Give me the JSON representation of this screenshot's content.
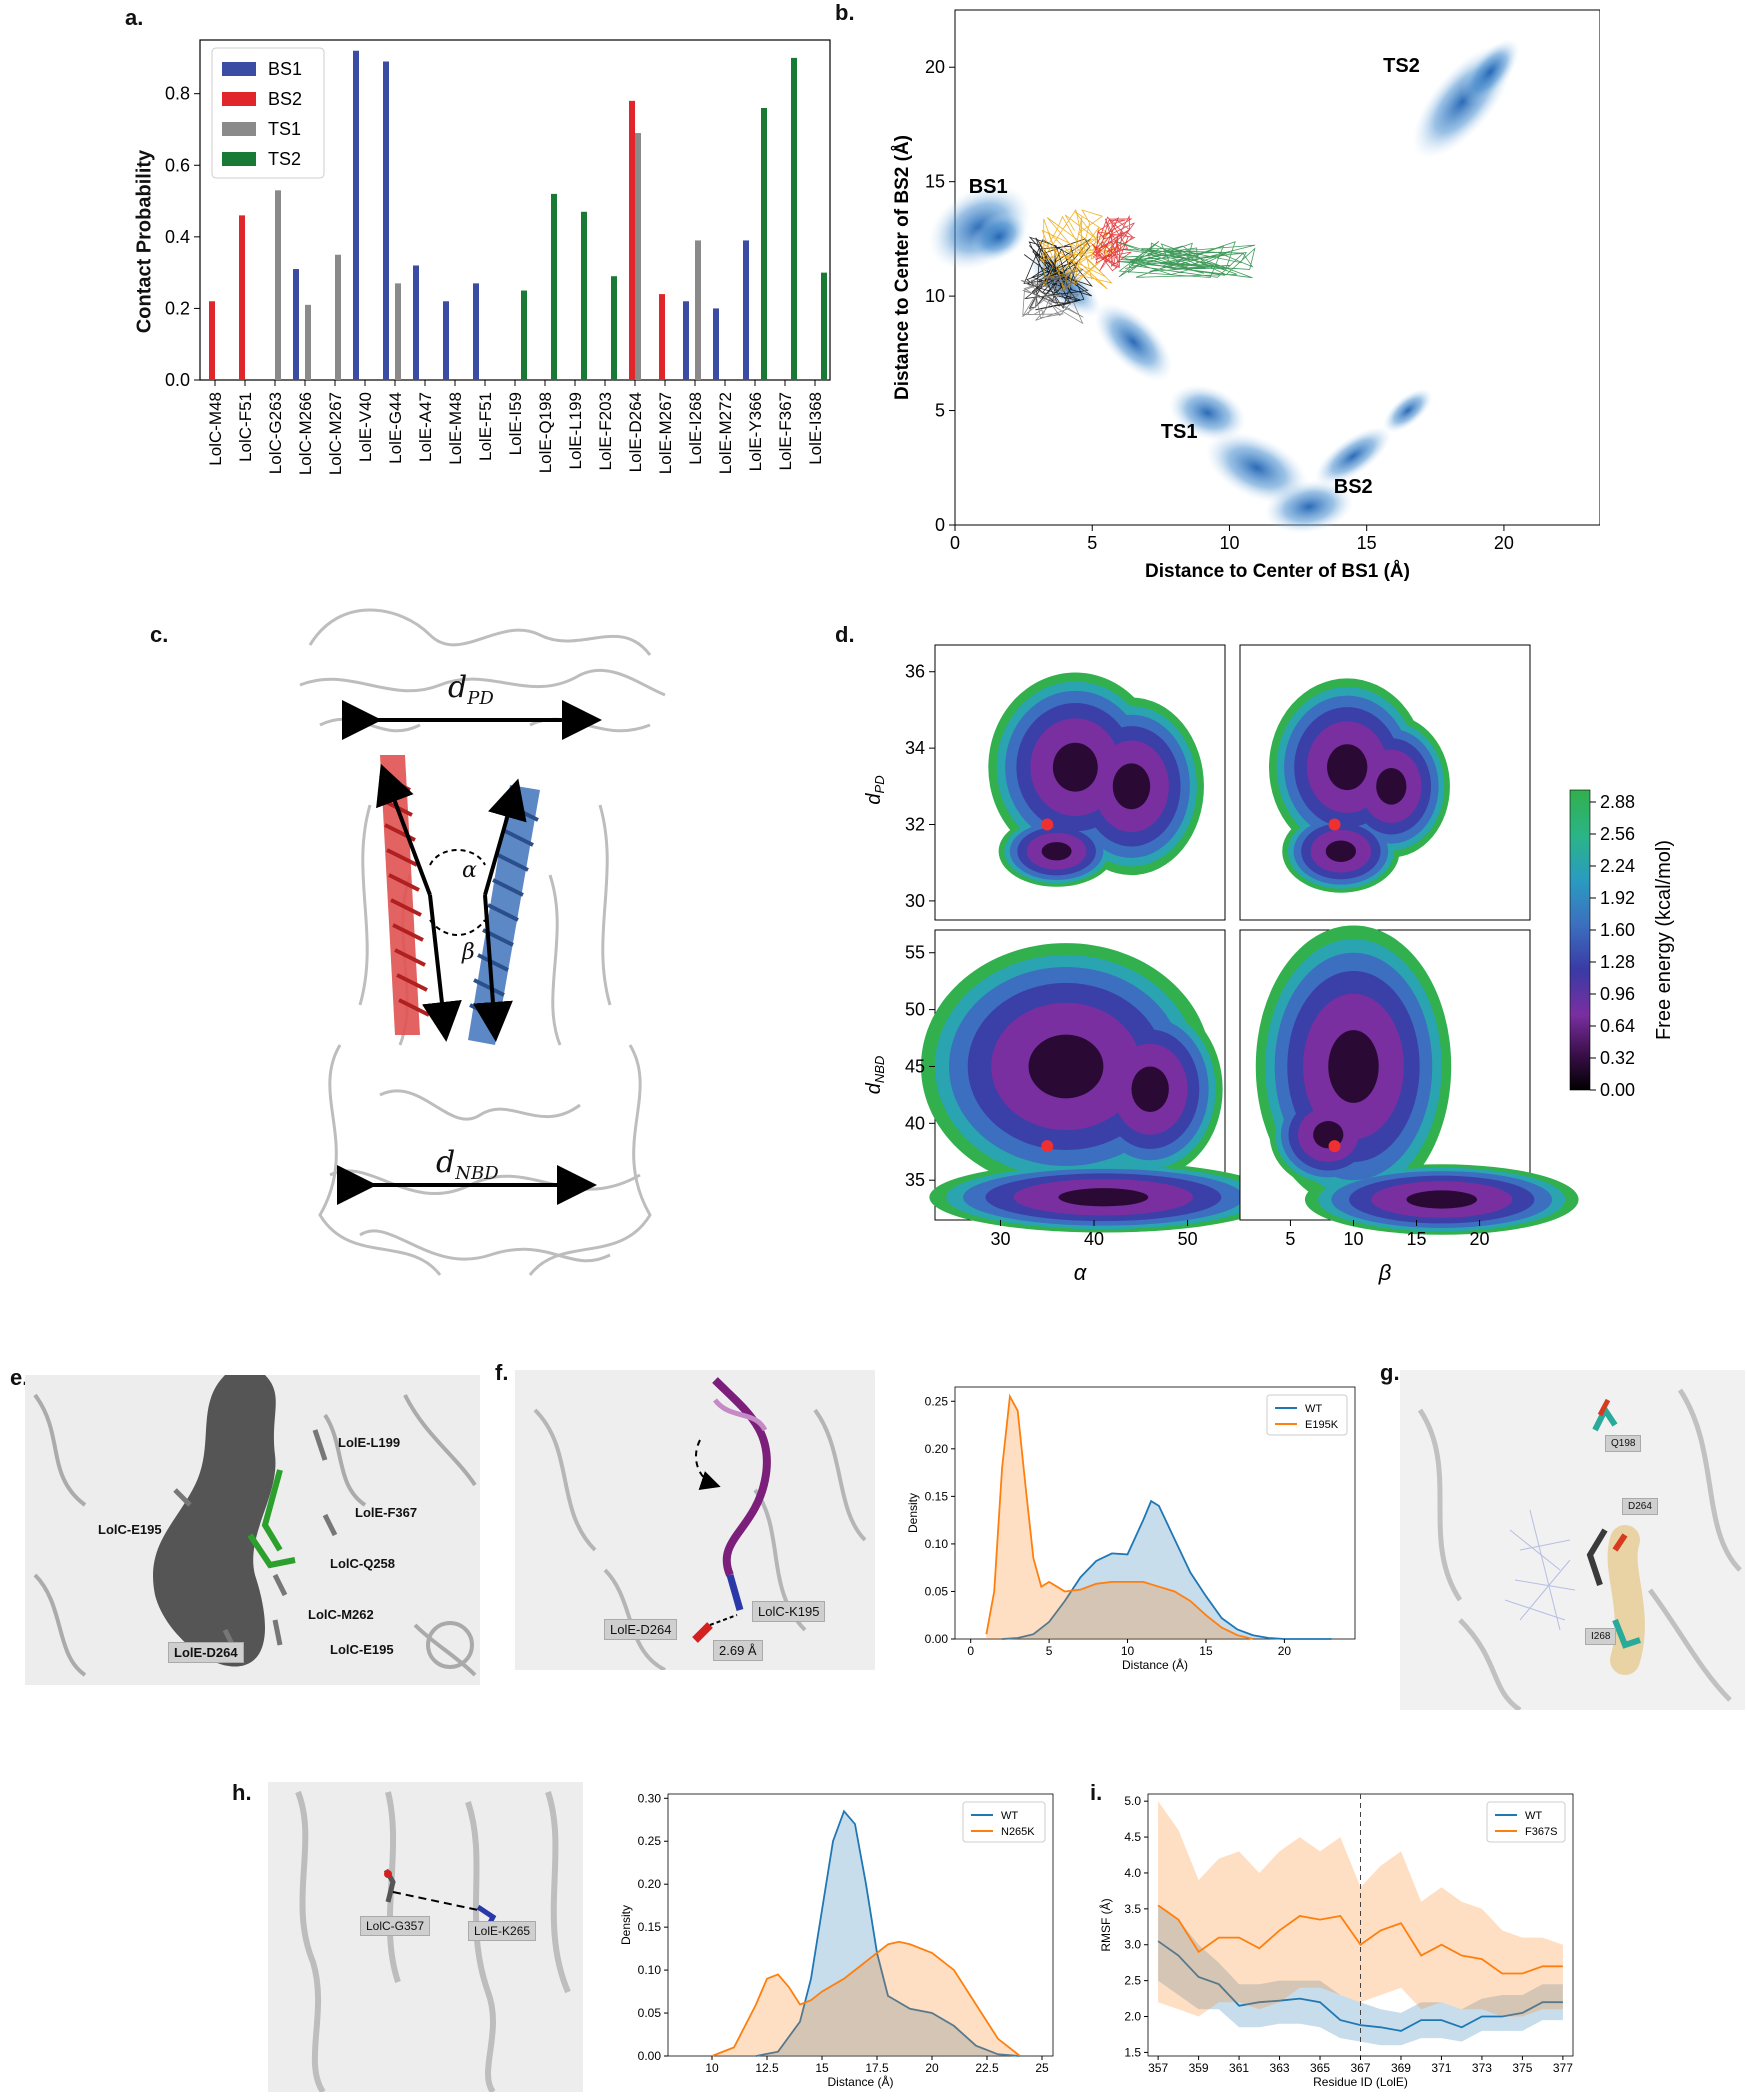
{
  "letters": {
    "a": "a.",
    "b": "b.",
    "c": "c.",
    "d": "d.",
    "e": "e.",
    "f": "f.",
    "g": "g.",
    "h": "h.",
    "i": "i."
  },
  "panel_a": {
    "ylabel": "Contact Probability",
    "legend": [
      "BS1",
      "BS2",
      "TS1",
      "TS2"
    ]
  },
  "panel_b": {
    "xlabel": "Distance to Center of BS1 (Å)",
    "ylabel": "Distance to Center of BS2 (Å)",
    "labels": {
      "BS1": "BS1",
      "TS1": "TS1",
      "TS2": "TS2",
      "BS2": "BS2"
    }
  },
  "panel_c": {
    "dPD": "d",
    "dPD_sub": "PD",
    "dNBD": "d",
    "dNBD_sub": "NBD",
    "alpha": "α",
    "beta": "β"
  },
  "panel_d": {
    "ylabel_top": "d",
    "ylabel_top_sub": "PD",
    "ylabel_bottom": "d",
    "ylabel_bottom_sub": "NBD",
    "xlabel_left": "α",
    "xlabel_right": "β",
    "colorbar_label": "Free energy (kcal/mol)",
    "colorbar_ticks": [
      "2.88",
      "2.56",
      "2.24",
      "1.92",
      "1.60",
      "1.28",
      "0.96",
      "0.64",
      "0.32",
      "0.00"
    ],
    "yt_top": [
      "36",
      "34",
      "32",
      "30"
    ],
    "yt_bottom": [
      "55",
      "50",
      "45",
      "40",
      "35"
    ],
    "xt_left": [
      "30",
      "40",
      "50"
    ],
    "xt_right": [
      "5",
      "10",
      "15",
      "20"
    ]
  },
  "panel_e": {
    "labels": [
      "LolE-L199",
      "LolE-F367",
      "LolC-E195",
      "LolC-Q258",
      "LolC-M262",
      "LolE-D264",
      "LolC-E195"
    ]
  },
  "panel_f": {
    "labels": {
      "d264": "LolE-D264",
      "k195": "LolC-K195",
      "dist": "2.69 Å"
    }
  },
  "panel_g": {
    "labels": {
      "q198": "Q198",
      "d264": "D264",
      "i268": "I268"
    }
  },
  "panel_h": {
    "labels": {
      "g357": "LolC-G357",
      "k265": "LolE-K265"
    }
  },
  "chart_data": [
    {
      "id": "a",
      "type": "bar",
      "ylabel": "Contact Probability",
      "ylim": [
        0,
        0.95
      ],
      "categories": [
        "LolC-M48",
        "LolC-F51",
        "LolC-G263",
        "LolC-M266",
        "LolC-M267",
        "LolE-V40",
        "LolE-G44",
        "LolE-A47",
        "LolE-M48",
        "LolE-F51",
        "LolE-I59",
        "LolE-Q198",
        "LolE-L199",
        "LolE-F203",
        "LolE-D264",
        "LolE-M267",
        "LolE-I268",
        "LolE-M272",
        "LolE-Y366",
        "LolE-F367",
        "LolE-I368"
      ],
      "series": [
        {
          "name": "BS1",
          "color": "#3b4ca5",
          "values": [
            0,
            0,
            0,
            0.31,
            0,
            0.92,
            0.89,
            0.32,
            0.22,
            0.27,
            0,
            0,
            0,
            0,
            0,
            0,
            0.22,
            0.2,
            0.39,
            0,
            0
          ]
        },
        {
          "name": "BS2",
          "color": "#e0262a",
          "values": [
            0.22,
            0.46,
            0,
            0,
            0,
            0,
            0,
            0,
            0,
            0,
            0,
            0,
            0,
            0,
            0.78,
            0.24,
            0,
            0,
            0,
            0,
            0
          ]
        },
        {
          "name": "TS1",
          "color": "#8a8a8a",
          "values": [
            0,
            0,
            0.53,
            0.21,
            0.35,
            0,
            0.27,
            0,
            0,
            0,
            0,
            0,
            0,
            0,
            0.69,
            0,
            0.39,
            0,
            0,
            0,
            0
          ]
        },
        {
          "name": "TS2",
          "color": "#197a36",
          "values": [
            0,
            0,
            0,
            0,
            0,
            0,
            0,
            0,
            0,
            0,
            0.25,
            0.52,
            0.47,
            0.29,
            0,
            0,
            0,
            0,
            0.76,
            0.9,
            0.3
          ]
        }
      ]
    },
    {
      "id": "b",
      "type": "scatter",
      "xlabel": "Distance to Center of BS1 (Å)",
      "ylabel": "Distance to Center of BS2 (Å)",
      "xlim": [
        0,
        23.5
      ],
      "ylim": [
        0,
        22.5
      ],
      "xticks": [
        0,
        5,
        10,
        15,
        20
      ],
      "yticks": [
        0,
        5,
        10,
        15,
        20
      ],
      "annotations": [
        {
          "text": "BS1",
          "x": 0.5,
          "y": 14.5
        },
        {
          "text": "TS1",
          "x": 7.5,
          "y": 3.8
        },
        {
          "text": "TS2",
          "x": 15.6,
          "y": 19.8
        },
        {
          "text": "BS2",
          "x": 13.8,
          "y": 1.4
        }
      ]
    },
    {
      "id": "d",
      "type": "heatmap",
      "colorbar_label": "Free energy (kcal/mol)",
      "clim": [
        0,
        3.0
      ],
      "panels": [
        {
          "x": "α",
          "y": "dPD",
          "xlim": [
            23,
            54
          ],
          "ylim": [
            29.5,
            36.7
          ],
          "marker": [
            35,
            32
          ]
        },
        {
          "x": "β",
          "y": "dPD",
          "xlim": [
            1,
            24
          ],
          "ylim": [
            29.5,
            36.7
          ],
          "marker": [
            8.5,
            32
          ]
        },
        {
          "x": "α",
          "y": "dNBD",
          "xlim": [
            23,
            54
          ],
          "ylim": [
            31.5,
            57
          ],
          "marker": [
            35,
            38
          ]
        },
        {
          "x": "β",
          "y": "dNBD",
          "xlim": [
            1,
            24
          ],
          "ylim": [
            31.5,
            57
          ],
          "marker": [
            8.5,
            38
          ]
        }
      ]
    },
    {
      "id": "f",
      "type": "area",
      "xlabel": "Distance (Å)",
      "ylabel": "Density",
      "xlim": [
        -1,
        24.5
      ],
      "ylim": [
        0,
        0.265
      ],
      "xticks": [
        0,
        5,
        10,
        15,
        20
      ],
      "yticks": [
        0,
        0.05,
        0.1,
        0.15,
        0.2,
        0.25
      ],
      "legend": [
        "WT",
        "E195K"
      ],
      "series": [
        {
          "name": "WT",
          "color": "#1f77b4",
          "x": [
            2,
            3,
            4,
            5,
            6,
            7,
            8,
            9,
            10,
            11,
            11.5,
            12,
            13,
            14,
            15,
            16,
            17,
            18,
            19,
            20,
            21,
            22,
            23
          ],
          "y": [
            0,
            0.001,
            0.005,
            0.018,
            0.04,
            0.065,
            0.082,
            0.09,
            0.089,
            0.125,
            0.145,
            0.14,
            0.105,
            0.07,
            0.045,
            0.022,
            0.01,
            0.004,
            0.001,
            0,
            0,
            0,
            0
          ]
        },
        {
          "name": "E195K",
          "color": "#ff7f0e",
          "x": [
            1,
            1.5,
            2,
            2.5,
            3,
            3.5,
            4,
            4.5,
            5,
            5.5,
            6,
            7,
            8,
            9,
            10,
            11,
            12,
            13,
            14,
            15,
            16,
            17,
            18
          ],
          "y": [
            0.005,
            0.05,
            0.18,
            0.255,
            0.24,
            0.16,
            0.085,
            0.055,
            0.06,
            0.055,
            0.05,
            0.052,
            0.058,
            0.06,
            0.06,
            0.06,
            0.055,
            0.05,
            0.04,
            0.025,
            0.012,
            0.004,
            0
          ]
        }
      ]
    },
    {
      "id": "h",
      "type": "area",
      "xlabel": "Distance (Å)",
      "ylabel": "Density",
      "xlim": [
        8,
        25.5
      ],
      "ylim": [
        0,
        0.305
      ],
      "xticks": [
        10,
        12.5,
        15,
        17.5,
        20,
        22.5,
        25
      ],
      "yticks": [
        0,
        0.05,
        0.1,
        0.15,
        0.2,
        0.25,
        0.3
      ],
      "legend": [
        "WT",
        "N265K"
      ],
      "series": [
        {
          "name": "WT",
          "color": "#1f77b4",
          "x": [
            12,
            13,
            14,
            14.5,
            15,
            15.5,
            16,
            16.5,
            17,
            17.5,
            18,
            19,
            20,
            21,
            22,
            23,
            24
          ],
          "y": [
            0,
            0.005,
            0.04,
            0.09,
            0.17,
            0.25,
            0.285,
            0.27,
            0.2,
            0.12,
            0.07,
            0.055,
            0.05,
            0.035,
            0.012,
            0.002,
            0
          ]
        },
        {
          "name": "N265K",
          "color": "#ff7f0e",
          "x": [
            10,
            11,
            12,
            12.5,
            13,
            13.5,
            14,
            14.5,
            15,
            16,
            17,
            18,
            18.5,
            19,
            20,
            21,
            22,
            23,
            24
          ],
          "y": [
            0,
            0.01,
            0.06,
            0.09,
            0.095,
            0.08,
            0.06,
            0.065,
            0.075,
            0.09,
            0.11,
            0.13,
            0.133,
            0.13,
            0.12,
            0.1,
            0.06,
            0.02,
            0
          ]
        }
      ]
    },
    {
      "id": "i",
      "type": "line",
      "xlabel": "Residue ID (LolE)",
      "ylabel": "RMSF (Å)",
      "xlim": [
        356.5,
        377.5
      ],
      "ylim": [
        1.45,
        5.1
      ],
      "xticks": [
        357,
        359,
        361,
        363,
        365,
        367,
        369,
        371,
        373,
        375,
        377
      ],
      "yticks": [
        1.5,
        2.0,
        2.5,
        3.0,
        3.5,
        4.0,
        4.5,
        5.0
      ],
      "legend": [
        "WT",
        "F367S"
      ],
      "vline": 367,
      "series": [
        {
          "name": "WT",
          "color": "#1f77b4",
          "x": [
            357,
            358,
            359,
            360,
            361,
            362,
            363,
            364,
            365,
            366,
            367,
            368,
            369,
            370,
            371,
            372,
            373,
            374,
            375,
            376,
            377
          ],
          "y": [
            3.05,
            2.85,
            2.55,
            2.45,
            2.15,
            2.2,
            2.22,
            2.25,
            2.2,
            1.95,
            1.88,
            1.85,
            1.8,
            1.95,
            1.95,
            1.85,
            2.0,
            2.0,
            2.05,
            2.2,
            2.2
          ],
          "band": [
            [
              2.5,
              3.55
            ],
            [
              2.3,
              3.35
            ],
            [
              2.1,
              3.0
            ],
            [
              2.1,
              2.75
            ],
            [
              1.85,
              2.45
            ],
            [
              1.85,
              2.45
            ],
            [
              1.9,
              2.5
            ],
            [
              1.9,
              2.5
            ],
            [
              1.85,
              2.5
            ],
            [
              1.7,
              2.3
            ],
            [
              1.65,
              2.2
            ],
            [
              1.6,
              2.1
            ],
            [
              1.6,
              2.05
            ],
            [
              1.7,
              2.2
            ],
            [
              1.7,
              2.2
            ],
            [
              1.65,
              2.1
            ],
            [
              1.8,
              2.25
            ],
            [
              1.8,
              2.3
            ],
            [
              1.8,
              2.3
            ],
            [
              1.95,
              2.45
            ],
            [
              1.95,
              2.45
            ]
          ]
        },
        {
          "name": "F367S",
          "color": "#ff7f0e",
          "x": [
            357,
            358,
            359,
            360,
            361,
            362,
            363,
            364,
            365,
            366,
            367,
            368,
            369,
            370,
            371,
            372,
            373,
            374,
            375,
            376,
            377
          ],
          "y": [
            3.55,
            3.35,
            2.9,
            3.1,
            3.1,
            2.95,
            3.2,
            3.4,
            3.35,
            3.4,
            3.0,
            3.2,
            3.3,
            2.85,
            3.0,
            2.85,
            2.8,
            2.6,
            2.6,
            2.7,
            2.7
          ],
          "band": [
            [
              2.2,
              5.0
            ],
            [
              2.1,
              4.6
            ],
            [
              2.0,
              3.9
            ],
            [
              2.2,
              4.2
            ],
            [
              2.2,
              4.3
            ],
            [
              2.1,
              4.0
            ],
            [
              2.2,
              4.3
            ],
            [
              2.4,
              4.5
            ],
            [
              2.4,
              4.3
            ],
            [
              2.3,
              4.5
            ],
            [
              2.2,
              3.8
            ],
            [
              2.3,
              4.1
            ],
            [
              2.4,
              4.3
            ],
            [
              2.1,
              3.6
            ],
            [
              2.2,
              3.8
            ],
            [
              2.1,
              3.6
            ],
            [
              2.1,
              3.5
            ],
            [
              2.0,
              3.2
            ],
            [
              2.0,
              3.1
            ],
            [
              2.1,
              3.1
            ],
            [
              2.1,
              3.0
            ]
          ]
        }
      ]
    }
  ]
}
